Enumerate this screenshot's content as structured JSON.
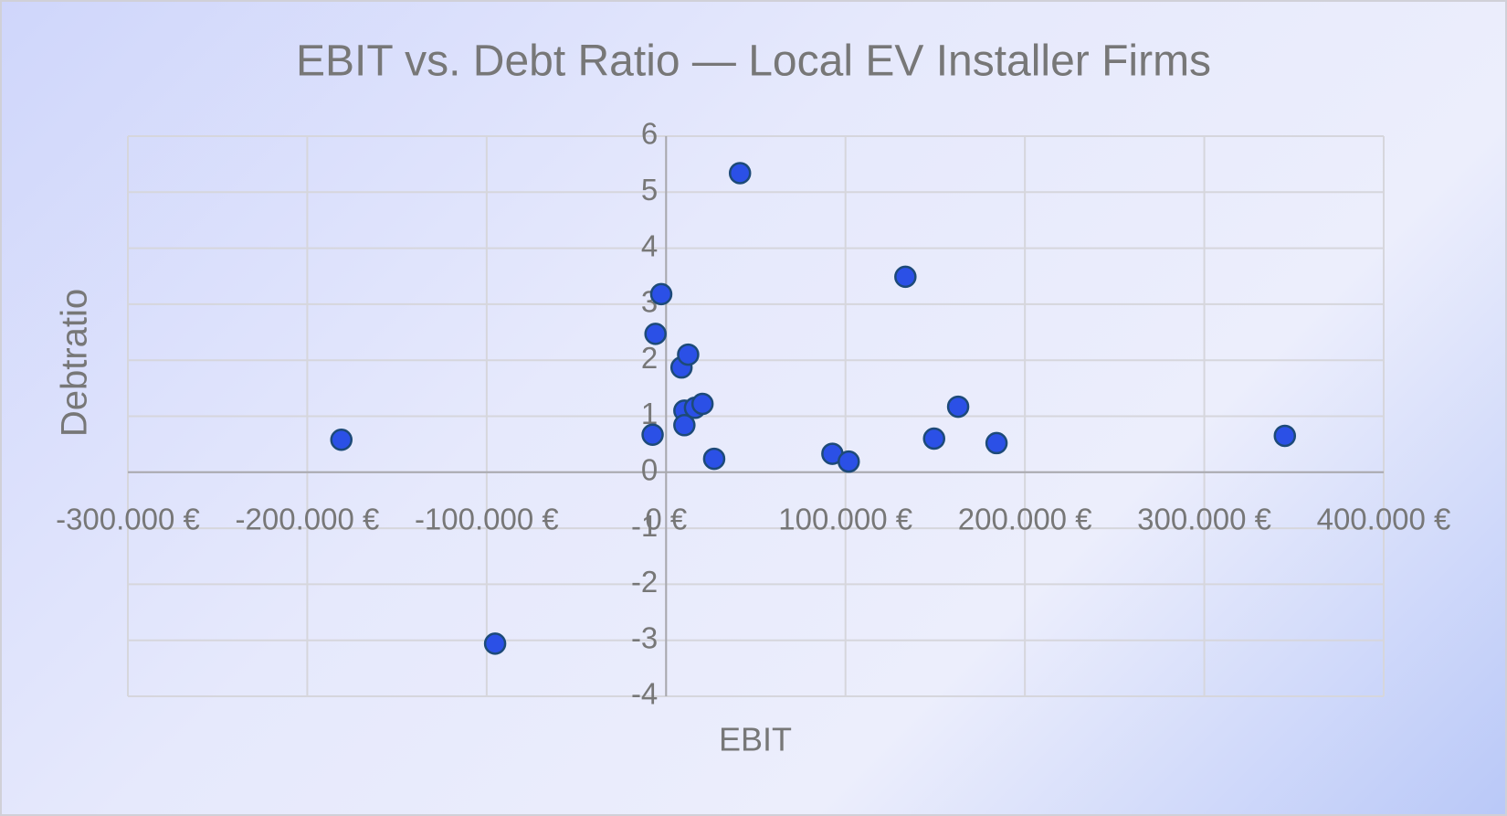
{
  "chart_data": {
    "type": "scatter",
    "title": "EBIT vs. Debt Ratio — Local EV Installer Firms",
    "x_label": "EBIT",
    "y_label": "Debtratio",
    "color": "#2b50e6",
    "x": [
      -181000,
      -95300,
      -7500,
      -5900,
      -2700,
      8600,
      12300,
      10200,
      10200,
      16100,
      20300,
      26800,
      41200,
      92700,
      101800,
      133400,
      149400,
      162800,
      184200,
      344900
    ],
    "y": [
      0.58,
      -3.06,
      0.67,
      2.47,
      3.18,
      1.87,
      2.1,
      1.1,
      0.84,
      1.15,
      1.22,
      0.24,
      5.34,
      0.33,
      0.19,
      3.49,
      0.6,
      1.17,
      0.52,
      0.65
    ],
    "xlim": [
      -300000,
      400000
    ],
    "xticks": [
      {
        "value": -300000,
        "label": "-300.000 €"
      },
      {
        "value": -200000,
        "label": "-200.000 €"
      },
      {
        "value": -100000,
        "label": "-100.000 €"
      },
      {
        "value": 0,
        "label": "0 €"
      },
      {
        "value": 100000,
        "label": "100.000 €"
      },
      {
        "value": 200000,
        "label": "200.000 €"
      },
      {
        "value": 300000,
        "label": "300.000 €"
      },
      {
        "value": 400000,
        "label": "400.000 €"
      }
    ],
    "ylim": [
      -4,
      6
    ],
    "yticks": [
      -4,
      -3,
      -2,
      -1,
      0,
      1,
      2,
      3,
      4,
      5,
      6
    ],
    "grid": true
  }
}
